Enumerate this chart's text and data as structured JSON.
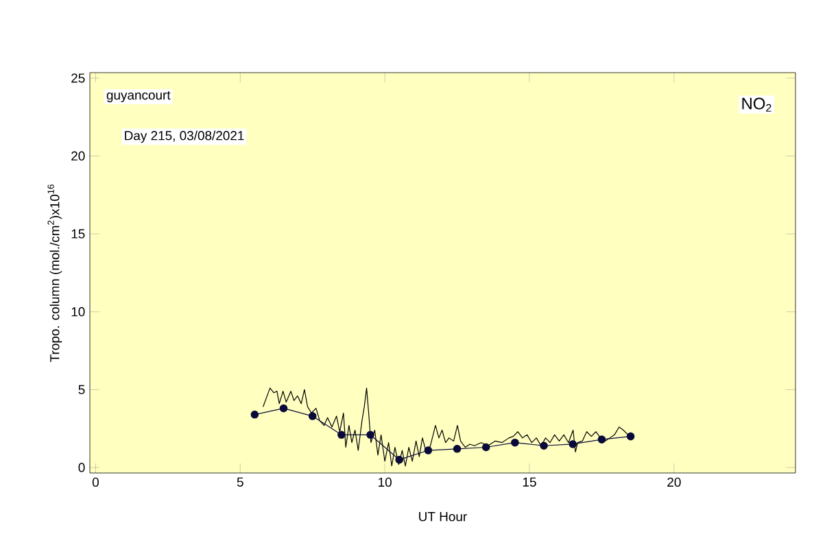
{
  "chart_data": {
    "type": "line",
    "xlabel": "UT Hour",
    "ylabel": "Tropo. column (mol./cm$^{2}$)x10$^{16}$",
    "annotations": [
      "guyancourt",
      "Day 215, 03/08/2021",
      "NO$_{2}$"
    ],
    "xlim": [
      -0.2,
      24.2
    ],
    "ylim": [
      -0.35,
      25.35
    ],
    "xticks": [
      0,
      5,
      10,
      15,
      20
    ],
    "yticks": [
      0,
      5,
      10,
      15,
      20,
      25
    ],
    "grid": false,
    "series": [
      {
        "color": "#000000",
        "marker": "none",
        "x": [
          5.79,
          6.03,
          6.16,
          6.27,
          6.35,
          6.48,
          6.59,
          6.75,
          6.86,
          6.98,
          7.11,
          7.22,
          7.33,
          7.46,
          7.62,
          7.75,
          7.9,
          8.02,
          8.17,
          8.33,
          8.44,
          8.57,
          8.65,
          8.76,
          8.86,
          8.97,
          9.08,
          9.21,
          9.29,
          9.37,
          9.45,
          9.52,
          9.65,
          9.76,
          9.87,
          10.0,
          10.13,
          10.24,
          10.35,
          10.48,
          10.6,
          10.71,
          10.83,
          10.95,
          11.08,
          11.19,
          11.3,
          11.43,
          11.56,
          11.67,
          11.75,
          11.87,
          11.98,
          12.1,
          12.22,
          12.38,
          12.51,
          12.62,
          12.78,
          12.94,
          13.1,
          13.33,
          13.57,
          13.81,
          14.05,
          14.29,
          14.44,
          14.6,
          14.76,
          14.92,
          15.08,
          15.24,
          15.4,
          15.56,
          15.71,
          15.87,
          16.03,
          16.19,
          16.35,
          16.51,
          16.59,
          16.67,
          16.83,
          16.98,
          17.14,
          17.3,
          17.46,
          17.62,
          17.78,
          17.94,
          18.1,
          18.25,
          18.41
        ],
        "values": [
          3.9,
          5.1,
          4.8,
          4.9,
          4.1,
          4.9,
          4.2,
          4.9,
          4.3,
          4.6,
          4.1,
          5.0,
          3.9,
          3.5,
          3.8,
          3.0,
          2.7,
          3.2,
          2.6,
          3.3,
          2.3,
          3.5,
          1.3,
          2.7,
          1.6,
          2.4,
          1.1,
          3.0,
          3.9,
          5.1,
          3.3,
          1.6,
          2.4,
          0.8,
          2.1,
          0.4,
          1.6,
          0.1,
          1.3,
          0.2,
          1.1,
          0.1,
          1.3,
          0.4,
          1.7,
          0.7,
          1.9,
          1.0,
          1.3,
          2.1,
          2.7,
          1.9,
          2.4,
          1.6,
          1.9,
          1.7,
          2.7,
          1.7,
          1.3,
          1.5,
          1.4,
          1.6,
          1.4,
          1.7,
          1.6,
          1.9,
          2.0,
          2.3,
          1.9,
          2.1,
          1.6,
          1.9,
          1.4,
          1.9,
          1.6,
          2.1,
          1.7,
          2.1,
          1.6,
          2.4,
          1.0,
          1.6,
          1.7,
          2.3,
          2.0,
          2.3,
          1.9,
          1.7,
          1.9,
          2.1,
          2.6,
          2.4,
          2.1
        ]
      },
      {
        "color": "#0a0a3a",
        "marker": "circle",
        "x": [
          5.5,
          6.5,
          7.5,
          8.5,
          9.5,
          10.5,
          11.5,
          12.5,
          13.5,
          14.5,
          15.5,
          16.5,
          17.5,
          18.5
        ],
        "values": [
          3.4,
          3.8,
          3.3,
          2.1,
          2.1,
          0.5,
          1.1,
          1.2,
          1.3,
          1.6,
          1.4,
          1.5,
          1.8,
          2.0
        ]
      }
    ]
  }
}
